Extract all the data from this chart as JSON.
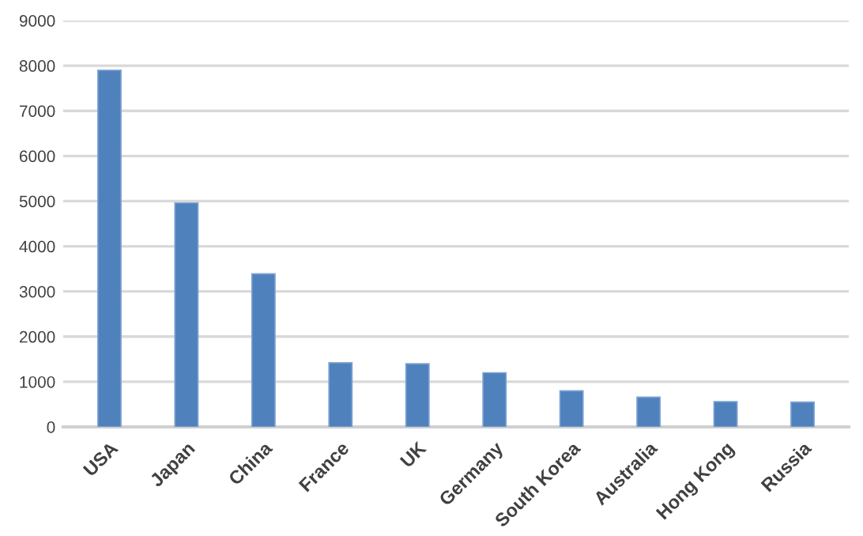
{
  "chart_data": {
    "type": "bar",
    "categories": [
      "USA",
      "Japan",
      "China",
      "France",
      "UK",
      "Germany",
      "South Korea",
      "Australia",
      "Hong Kong",
      "Russia"
    ],
    "values": [
      7900,
      4960,
      3390,
      1420,
      1400,
      1200,
      800,
      660,
      560,
      550
    ],
    "color": "#4f81bd",
    "ylim": [
      0,
      9000
    ],
    "yticks": [
      0,
      1000,
      2000,
      3000,
      4000,
      5000,
      6000,
      7000,
      8000,
      9000
    ],
    "grid": "y"
  }
}
